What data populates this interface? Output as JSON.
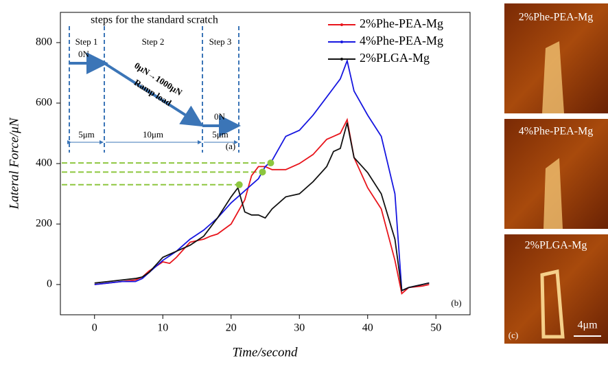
{
  "chart_data": {
    "type": "line",
    "x_label": "Time/second",
    "y_label": "Lateral Force/μN",
    "xlim": [
      -5,
      55
    ],
    "ylim": [
      -100,
      900
    ],
    "xticks": [
      0,
      10,
      20,
      30,
      40,
      50
    ],
    "yticks": [
      0,
      200,
      400,
      600,
      800
    ],
    "legend": "upper right",
    "panel_label": "(b)",
    "x": [
      0,
      2,
      4,
      6,
      7,
      8,
      10,
      11,
      12,
      14,
      16,
      17,
      18,
      20,
      21,
      22,
      23,
      24,
      25,
      26,
      28,
      30,
      32,
      34,
      35,
      36,
      37,
      38,
      40,
      42,
      44,
      45,
      46,
      48,
      49
    ],
    "series": [
      {
        "name": "2%Phe-PEA-Mg",
        "color": "#e8141b",
        "values": [
          0,
          5,
          10,
          15,
          25,
          45,
          75,
          70,
          90,
          140,
          150,
          160,
          167,
          200,
          240,
          280,
          360,
          390,
          390,
          380,
          380,
          400,
          430,
          480,
          490,
          500,
          545,
          420,
          320,
          250,
          80,
          -30,
          -10,
          -5,
          0
        ]
      },
      {
        "name": "4%Phe-PEA-Mg",
        "color": "#1616e0",
        "values": [
          0,
          5,
          10,
          10,
          20,
          40,
          80,
          95,
          110,
          150,
          180,
          200,
          220,
          270,
          290,
          310,
          330,
          350,
          390,
          410,
          490,
          510,
          560,
          620,
          650,
          680,
          740,
          640,
          560,
          490,
          300,
          -20,
          -10,
          0,
          5
        ]
      },
      {
        "name": "2%PLGA-Mg",
        "color": "#111111",
        "values": [
          5,
          10,
          15,
          20,
          25,
          40,
          90,
          100,
          110,
          130,
          160,
          190,
          220,
          290,
          320,
          240,
          230,
          230,
          220,
          250,
          290,
          300,
          340,
          390,
          440,
          450,
          535,
          420,
          370,
          300,
          150,
          -20,
          -10,
          0,
          5
        ]
      }
    ],
    "critical_points": {
      "color": "#8dc63f",
      "x": [
        21.2,
        24.6,
        25.8
      ],
      "y": [
        330,
        372,
        402
      ]
    }
  },
  "inset": {
    "title": "steps for the standard scratch",
    "steps": [
      "Step 1",
      "Step 2",
      "Step 3"
    ],
    "load_1": "0N",
    "ramp": "0μN→1000μN",
    "ramp_label": "Ramp load",
    "load_3": "0N",
    "lengths": [
      "5μm",
      "10μm",
      "5μm"
    ],
    "panel_label": "(a)"
  },
  "images": {
    "panels": [
      {
        "label": "2%Phe-PEA-Mg"
      },
      {
        "label": "4%Phe-PEA-Mg"
      },
      {
        "label": "2%PLGA-Mg"
      }
    ],
    "panel_label": "(c)",
    "scale_bar": "4μm"
  }
}
